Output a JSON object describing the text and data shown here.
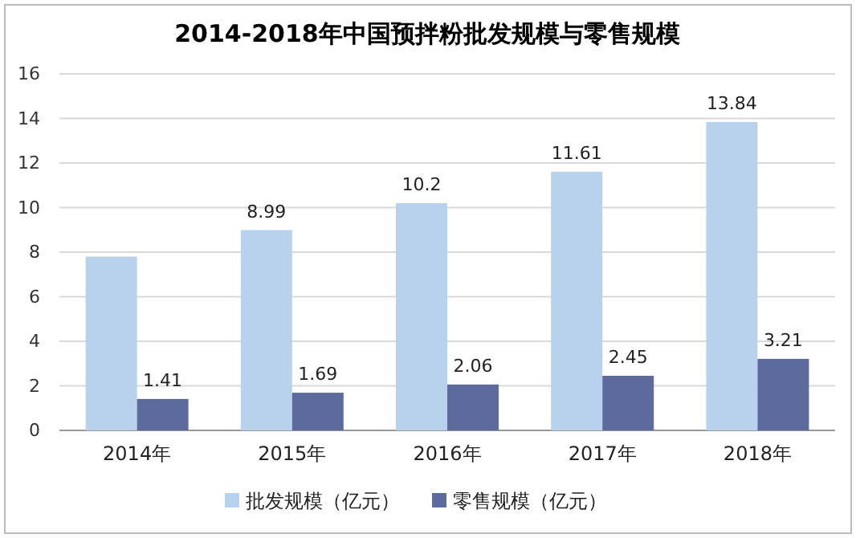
{
  "chart_data": {
    "type": "bar",
    "title": "2014-2018年中国预拌粉批发规模与零售规模",
    "categories": [
      "2014年",
      "2015年",
      "2016年",
      "2017年",
      "2018年"
    ],
    "series": [
      {
        "name": "批发规模（亿元）",
        "color": "#b8d2ee",
        "values": [
          7.8,
          8.99,
          10.2,
          11.61,
          13.84
        ],
        "value_labels": [
          null,
          "8.99",
          "10.2",
          "11.61",
          "13.84"
        ]
      },
      {
        "name": "零售规模（亿元）",
        "color": "#5c6b9c",
        "values": [
          1.41,
          1.69,
          2.06,
          2.45,
          3.21
        ],
        "value_labels": [
          "1.41",
          "1.69",
          "2.06",
          "2.45",
          "3.21"
        ]
      }
    ],
    "ylim": [
      0,
      16
    ],
    "yticks": [
      0,
      2,
      4,
      6,
      8,
      10,
      12,
      14,
      16
    ],
    "grid": "y",
    "legend": "bottom"
  }
}
